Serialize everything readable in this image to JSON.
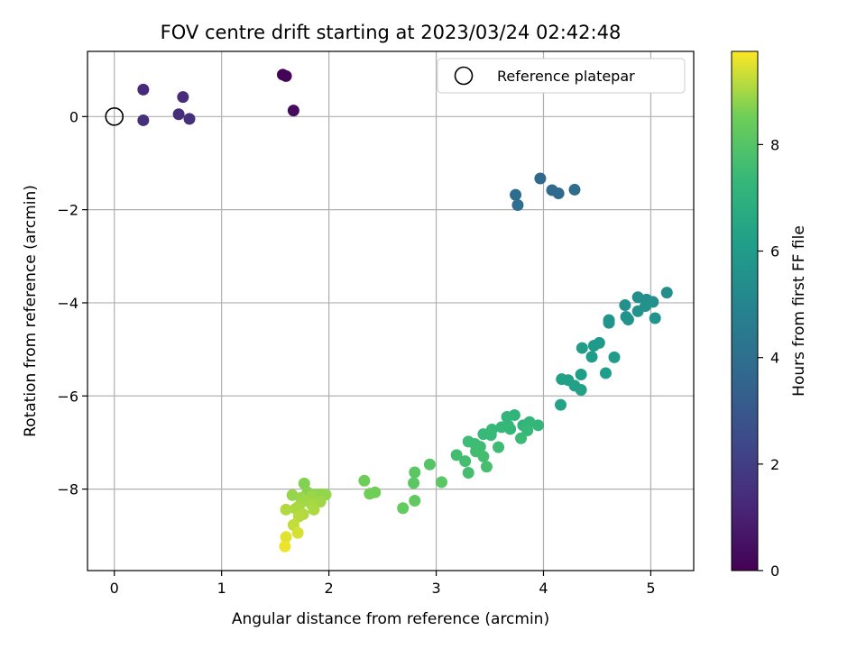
{
  "chart_data": {
    "type": "scatter",
    "title": "FOV centre drift starting at 2023/03/24 02:42:48",
    "xlabel": "Angular distance from reference (arcmin)",
    "ylabel": "Rotation from reference (arcmin)",
    "xlim": [
      -0.25,
      5.4
    ],
    "ylim": [
      -9.75,
      1.4
    ],
    "xticks": [
      0,
      1,
      2,
      3,
      4,
      5
    ],
    "yticks": [
      0,
      -2,
      -4,
      -6,
      -8
    ],
    "grid": true,
    "legend": {
      "position": "top-right",
      "label": "Reference platepar"
    },
    "reference_point": {
      "x": 0,
      "y": 0
    },
    "colorbar": {
      "label": "Hours from first FF file",
      "range": [
        0,
        9.75
      ],
      "ticks": [
        0,
        2,
        4,
        6,
        8
      ],
      "colormap": "viridis"
    },
    "series": [
      {
        "points": [
          {
            "x": 1.57,
            "y": 0.9,
            "t": 0.05
          },
          {
            "x": 1.6,
            "y": 0.87,
            "t": 0.1
          },
          {
            "x": 1.67,
            "y": 0.13,
            "t": 0.3
          },
          {
            "x": 0.27,
            "y": 0.58,
            "t": 1.3
          },
          {
            "x": 0.64,
            "y": 0.42,
            "t": 1.4
          },
          {
            "x": 0.6,
            "y": 0.05,
            "t": 1.45
          },
          {
            "x": 0.7,
            "y": -0.05,
            "t": 1.5
          },
          {
            "x": 0.27,
            "y": -0.08,
            "t": 1.5
          },
          {
            "x": 3.97,
            "y": -1.33,
            "t": 3.7
          },
          {
            "x": 4.08,
            "y": -1.58,
            "t": 3.75
          },
          {
            "x": 4.14,
            "y": -1.65,
            "t": 3.8
          },
          {
            "x": 4.29,
            "y": -1.57,
            "t": 3.85
          },
          {
            "x": 3.74,
            "y": -1.68,
            "t": 3.9
          },
          {
            "x": 3.76,
            "y": -1.9,
            "t": 3.95
          },
          {
            "x": 5.15,
            "y": -3.78,
            "t": 5.4
          },
          {
            "x": 4.88,
            "y": -3.88,
            "t": 5.45
          },
          {
            "x": 4.96,
            "y": -3.93,
            "t": 5.45
          },
          {
            "x": 5.02,
            "y": -3.98,
            "t": 5.5
          },
          {
            "x": 4.76,
            "y": -4.05,
            "t": 5.5
          },
          {
            "x": 4.95,
            "y": -4.07,
            "t": 5.55
          },
          {
            "x": 4.88,
            "y": -4.18,
            "t": 5.55
          },
          {
            "x": 4.77,
            "y": -4.3,
            "t": 5.6
          },
          {
            "x": 4.79,
            "y": -4.36,
            "t": 5.6
          },
          {
            "x": 5.04,
            "y": -4.33,
            "t": 5.65
          },
          {
            "x": 4.61,
            "y": -4.37,
            "t": 5.65
          },
          {
            "x": 4.61,
            "y": -4.43,
            "t": 5.7
          },
          {
            "x": 4.52,
            "y": -4.86,
            "t": 5.9
          },
          {
            "x": 4.47,
            "y": -4.92,
            "t": 5.95
          },
          {
            "x": 4.36,
            "y": -4.97,
            "t": 6.0
          },
          {
            "x": 4.45,
            "y": -5.16,
            "t": 6.05
          },
          {
            "x": 4.66,
            "y": -5.17,
            "t": 6.05
          },
          {
            "x": 4.58,
            "y": -5.51,
            "t": 6.1
          },
          {
            "x": 4.35,
            "y": -5.54,
            "t": 6.15
          },
          {
            "x": 4.17,
            "y": -5.64,
            "t": 6.2
          },
          {
            "x": 4.23,
            "y": -5.66,
            "t": 6.2
          },
          {
            "x": 4.29,
            "y": -5.78,
            "t": 6.25
          },
          {
            "x": 4.35,
            "y": -5.87,
            "t": 6.25
          },
          {
            "x": 4.16,
            "y": -6.19,
            "t": 6.35
          },
          {
            "x": 3.73,
            "y": -6.41,
            "t": 7.1
          },
          {
            "x": 3.66,
            "y": -6.45,
            "t": 7.15
          },
          {
            "x": 3.67,
            "y": -6.63,
            "t": 7.2
          },
          {
            "x": 3.81,
            "y": -6.63,
            "t": 7.2
          },
          {
            "x": 3.95,
            "y": -6.63,
            "t": 7.25
          },
          {
            "x": 3.87,
            "y": -6.56,
            "t": 7.25
          },
          {
            "x": 3.61,
            "y": -6.67,
            "t": 7.3
          },
          {
            "x": 3.69,
            "y": -6.71,
            "t": 7.3
          },
          {
            "x": 3.52,
            "y": -6.72,
            "t": 7.35
          },
          {
            "x": 3.85,
            "y": -6.74,
            "t": 7.35
          },
          {
            "x": 3.44,
            "y": -6.82,
            "t": 7.4
          },
          {
            "x": 3.51,
            "y": -6.84,
            "t": 7.4
          },
          {
            "x": 3.79,
            "y": -6.91,
            "t": 7.45
          },
          {
            "x": 3.3,
            "y": -6.98,
            "t": 7.5
          },
          {
            "x": 3.36,
            "y": -7.03,
            "t": 7.5
          },
          {
            "x": 3.41,
            "y": -7.09,
            "t": 7.55
          },
          {
            "x": 3.58,
            "y": -7.1,
            "t": 7.55
          },
          {
            "x": 3.37,
            "y": -7.19,
            "t": 7.6
          },
          {
            "x": 3.19,
            "y": -7.27,
            "t": 7.6
          },
          {
            "x": 3.44,
            "y": -7.3,
            "t": 7.65
          },
          {
            "x": 3.27,
            "y": -7.4,
            "t": 7.65
          },
          {
            "x": 3.47,
            "y": -7.52,
            "t": 7.7
          },
          {
            "x": 3.3,
            "y": -7.65,
            "t": 7.7
          },
          {
            "x": 2.94,
            "y": -7.47,
            "t": 8.0
          },
          {
            "x": 2.8,
            "y": -7.64,
            "t": 8.1
          },
          {
            "x": 3.05,
            "y": -7.85,
            "t": 8.1
          },
          {
            "x": 2.79,
            "y": -7.87,
            "t": 8.15
          },
          {
            "x": 2.8,
            "y": -8.25,
            "t": 8.25
          },
          {
            "x": 2.69,
            "y": -8.41,
            "t": 8.3
          },
          {
            "x": 2.33,
            "y": -7.82,
            "t": 8.5
          },
          {
            "x": 2.43,
            "y": -8.07,
            "t": 8.55
          },
          {
            "x": 2.38,
            "y": -8.1,
            "t": 8.55
          },
          {
            "x": 1.77,
            "y": -7.88,
            "t": 8.7
          },
          {
            "x": 1.8,
            "y": -8.07,
            "t": 8.75
          },
          {
            "x": 1.93,
            "y": -8.11,
            "t": 8.8
          },
          {
            "x": 1.88,
            "y": -8.12,
            "t": 8.8
          },
          {
            "x": 1.97,
            "y": -8.12,
            "t": 8.85
          },
          {
            "x": 1.66,
            "y": -8.13,
            "t": 8.85
          },
          {
            "x": 1.84,
            "y": -8.16,
            "t": 8.9
          },
          {
            "x": 1.74,
            "y": -8.19,
            "t": 8.9
          },
          {
            "x": 1.78,
            "y": -8.25,
            "t": 8.95
          },
          {
            "x": 1.92,
            "y": -8.27,
            "t": 8.95
          },
          {
            "x": 1.84,
            "y": -8.33,
            "t": 9.0
          },
          {
            "x": 1.72,
            "y": -8.37,
            "t": 9.0
          },
          {
            "x": 1.69,
            "y": -8.42,
            "t": 9.05
          },
          {
            "x": 1.86,
            "y": -8.44,
            "t": 9.05
          },
          {
            "x": 1.6,
            "y": -8.44,
            "t": 9.1
          },
          {
            "x": 1.76,
            "y": -8.54,
            "t": 9.1
          },
          {
            "x": 1.72,
            "y": -8.59,
            "t": 9.15
          },
          {
            "x": 1.67,
            "y": -8.77,
            "t": 9.25
          },
          {
            "x": 1.71,
            "y": -8.94,
            "t": 9.4
          },
          {
            "x": 1.6,
            "y": -9.03,
            "t": 9.5
          },
          {
            "x": 1.59,
            "y": -9.23,
            "t": 9.6
          }
        ]
      }
    ]
  }
}
